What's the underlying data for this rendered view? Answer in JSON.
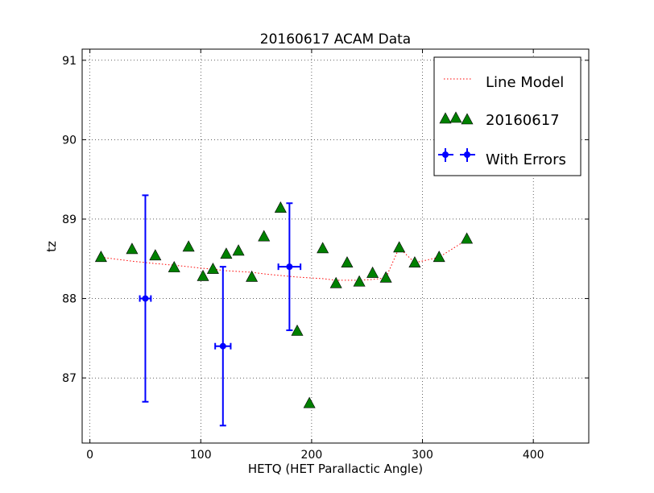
{
  "chart_data": {
    "type": "scatter",
    "title": "20160617 ACAM Data",
    "xlabel": "HETQ (HET Parallactic Angle)",
    "ylabel": "tz",
    "xlim": [
      -7,
      450
    ],
    "ylim": [
      86.18,
      91.14
    ],
    "xticks": [
      0,
      100,
      200,
      300,
      400
    ],
    "yticks": [
      87,
      88,
      89,
      90,
      91
    ],
    "grid": true,
    "legend_position": "top-right",
    "series": [
      {
        "name": "Line Model",
        "kind": "dotted-line",
        "color": "#ff0000",
        "points": [
          [
            10,
            88.52
          ],
          [
            38,
            88.47
          ],
          [
            59,
            88.44
          ],
          [
            76,
            88.42
          ],
          [
            89,
            88.4
          ],
          [
            102,
            88.38
          ],
          [
            111,
            88.37
          ],
          [
            123,
            88.35
          ],
          [
            134,
            88.34
          ],
          [
            146,
            88.33
          ],
          [
            157,
            88.31
          ],
          [
            172,
            88.29
          ],
          [
            187,
            88.27
          ],
          [
            198,
            88.26
          ],
          [
            210,
            88.25
          ],
          [
            222,
            88.23
          ],
          [
            232,
            88.23
          ],
          [
            243,
            88.23
          ],
          [
            255,
            88.24
          ],
          [
            267,
            88.26
          ],
          [
            279,
            88.64
          ],
          [
            293,
            88.45
          ],
          [
            315,
            88.52
          ],
          [
            340,
            88.74
          ]
        ]
      },
      {
        "name": "20160617",
        "kind": "triangle-markers",
        "color": "#008000",
        "points": [
          [
            10,
            88.52
          ],
          [
            38,
            88.62
          ],
          [
            59,
            88.54
          ],
          [
            76,
            88.39
          ],
          [
            89,
            88.65
          ],
          [
            102,
            88.28
          ],
          [
            111,
            88.37
          ],
          [
            123,
            88.56
          ],
          [
            134,
            88.6
          ],
          [
            146,
            88.27
          ],
          [
            157,
            88.78
          ],
          [
            172,
            89.14
          ],
          [
            187,
            87.59
          ],
          [
            198,
            86.68
          ],
          [
            210,
            88.63
          ],
          [
            222,
            88.19
          ],
          [
            232,
            88.45
          ],
          [
            243,
            88.21
          ],
          [
            255,
            88.32
          ],
          [
            267,
            88.26
          ],
          [
            279,
            88.64
          ],
          [
            293,
            88.45
          ],
          [
            315,
            88.52
          ],
          [
            340,
            88.75
          ]
        ]
      },
      {
        "name": "With Errors",
        "kind": "errorbar",
        "color": "#0000ff",
        "points": [
          {
            "x": 50,
            "y": 88.0,
            "xerr": 5,
            "yerr": 1.3
          },
          {
            "x": 120,
            "y": 87.4,
            "xerr": 7,
            "yerr": 1.0
          },
          {
            "x": 180,
            "y": 88.4,
            "xerr": 10,
            "yerr": 0.8
          }
        ]
      }
    ]
  }
}
